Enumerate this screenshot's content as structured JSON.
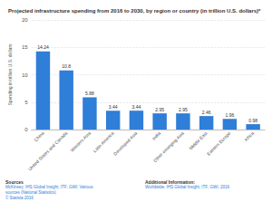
{
  "chart_data": {
    "type": "bar",
    "title": "Projected infrastructure spending from 2016 to 2030, by region or country (in trillion U.S. dollars)*",
    "y_label": "Spending in trillion U.S. dollars",
    "categories": [
      "China",
      "United States and Canada",
      "Western Asia",
      "Latin America",
      "Developed Asia",
      "India",
      "Other emerging Asia",
      "Middle East",
      "Eastern Europe",
      "Africa"
    ],
    "values": [
      14.24,
      10.8,
      5.88,
      3.44,
      3.44,
      2.95,
      2.95,
      2.46,
      1.96,
      0.98
    ],
    "color": "#2f7ed8",
    "ylim": [
      0,
      20
    ],
    "yticks": [
      0,
      5,
      10,
      15,
      20
    ],
    "grid": true,
    "data_labels": true,
    "annotations": [
      [
        "Sources",
        "McKinsey; IHS Global Insight; ITF; GWI; Various",
        "sources (National Statistics)",
        "© Statista 2016"
      ],
      [
        "Additional Information:",
        "Worldwide; IHS Global Insight; ITF; GWI; 2016"
      ]
    ]
  }
}
